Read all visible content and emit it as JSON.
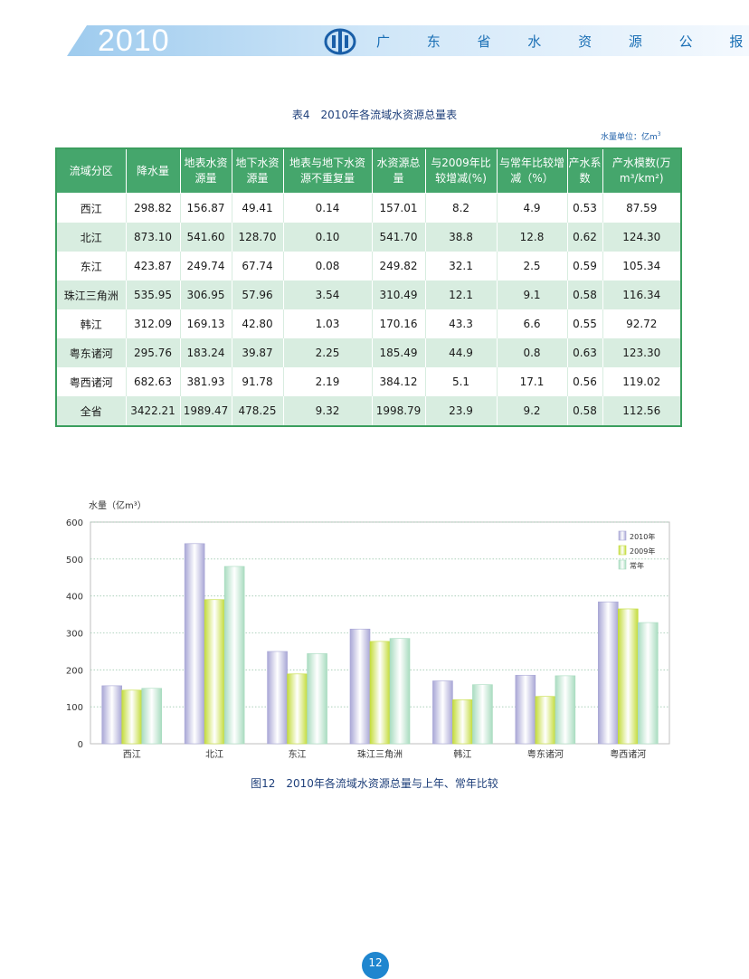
{
  "header": {
    "year": "2010",
    "title": "广 东 省 水 资 源 公 报"
  },
  "table": {
    "title": "表4　2010年各流域水资源总量表",
    "unit_prefix": "水量单位：亿m",
    "unit_sup": "3",
    "headers": [
      "流域分区",
      "降水量",
      "地表水资源量",
      "地下水资源量",
      "地表与地下水资源不重复量",
      "水资源总量",
      "与2009年比较增减(%)",
      "与常年比较增减（%）",
      "产水系数",
      "产水模数(万m³/km²)"
    ],
    "rows": [
      [
        "西江",
        "298.82",
        "156.87",
        "49.41",
        "0.14",
        "157.01",
        "8.2",
        "4.9",
        "0.53",
        "87.59"
      ],
      [
        "北江",
        "873.10",
        "541.60",
        "128.70",
        "0.10",
        "541.70",
        "38.8",
        "12.8",
        "0.62",
        "124.30"
      ],
      [
        "东江",
        "423.87",
        "249.74",
        "67.74",
        "0.08",
        "249.82",
        "32.1",
        "2.5",
        "0.59",
        "105.34"
      ],
      [
        "珠江三角洲",
        "535.95",
        "306.95",
        "57.96",
        "3.54",
        "310.49",
        "12.1",
        "9.1",
        "0.58",
        "116.34"
      ],
      [
        "韩江",
        "312.09",
        "169.13",
        "42.80",
        "1.03",
        "170.16",
        "43.3",
        "6.6",
        "0.55",
        "92.72"
      ],
      [
        "粤东诸河",
        "295.76",
        "183.24",
        "39.87",
        "2.25",
        "185.49",
        "44.9",
        "0.8",
        "0.63",
        "123.30"
      ],
      [
        "粤西诸河",
        "682.63",
        "381.93",
        "91.78",
        "2.19",
        "384.12",
        "5.1",
        "17.1",
        "0.56",
        "119.02"
      ],
      [
        "全省",
        "3422.21",
        "1989.47",
        "478.25",
        "9.32",
        "1998.79",
        "23.9",
        "9.2",
        "0.58",
        "112.56"
      ]
    ]
  },
  "chart_data": {
    "type": "bar",
    "ylabel": "水量（亿m³）",
    "ylim": [
      0,
      600
    ],
    "yticks": [
      "0",
      "100",
      "200",
      "300",
      "400",
      "500",
      "600"
    ],
    "grid": true,
    "legend_position": "top-right",
    "categories": [
      "西江",
      "北江",
      "东江",
      "珠江三角洲",
      "韩江",
      "粤东诸河",
      "粤西诸河"
    ],
    "series": [
      {
        "name": "2010年",
        "color": "#a9a7d6",
        "values": [
          157.01,
          541.7,
          249.82,
          310.49,
          170.16,
          185.49,
          384.12
        ]
      },
      {
        "name": "2009年",
        "color": "#c4dc3c",
        "values": [
          145,
          390,
          189,
          277,
          119,
          128,
          365
        ]
      },
      {
        "name": "常年",
        "color": "#a9dcc0",
        "values": [
          150,
          480,
          244,
          285,
          160,
          184,
          328
        ]
      }
    ]
  },
  "figure": {
    "caption": "图12　2010年各流域水资源总量与上年、常年比较"
  },
  "footer": {
    "page": "12"
  }
}
